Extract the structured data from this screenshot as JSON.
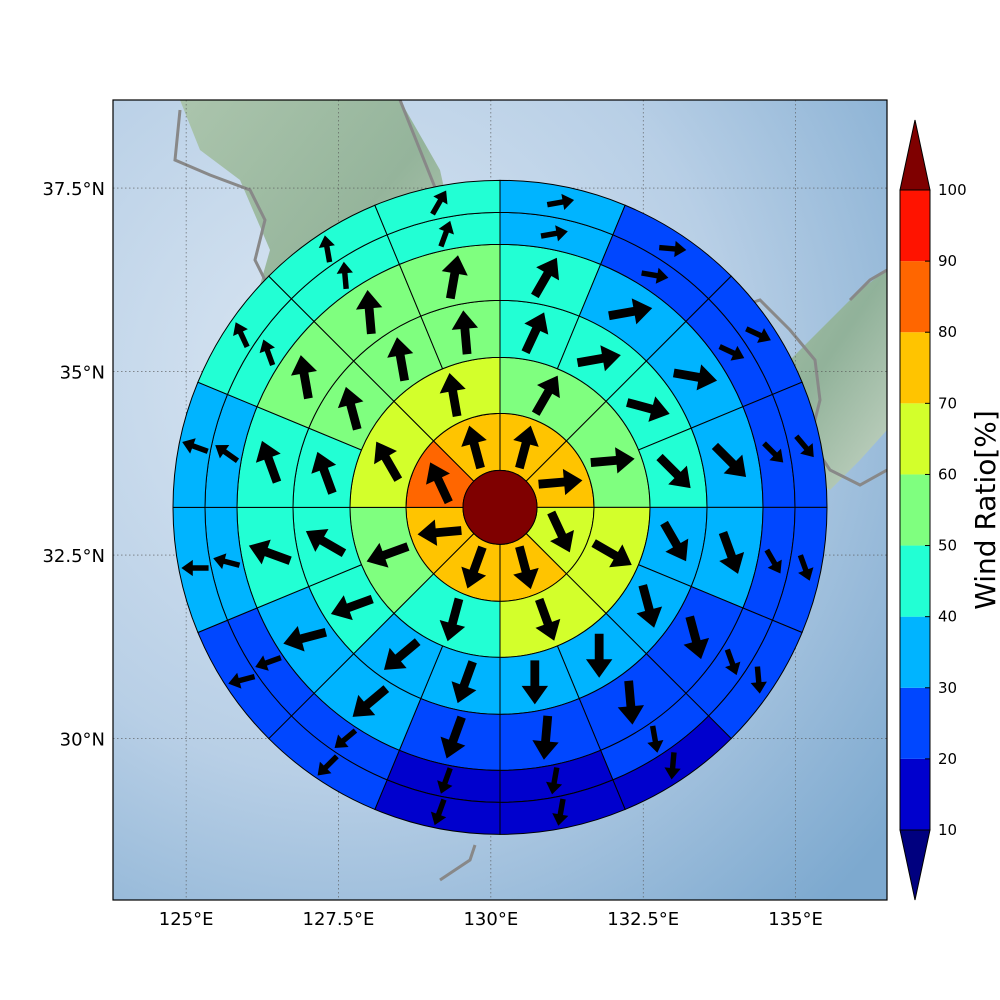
{
  "chart_data": {
    "type": "heatmap",
    "subtype": "polar-sector-wind-map",
    "map": {
      "lon_range": [
        123.8,
        136.5
      ],
      "lat_range": [
        27.8,
        38.7
      ],
      "center": {
        "lon": 130.15,
        "lat": 33.15
      },
      "x_ticks": [
        125,
        127.5,
        130,
        132.5,
        135
      ],
      "x_tick_labels": [
        "125°E",
        "127.5°E",
        "130°E",
        "132.5°E",
        "135°E"
      ],
      "y_ticks": [
        30,
        32.5,
        35,
        37.5
      ],
      "y_tick_labels": [
        "30°N",
        "32.5°N",
        "35°N",
        "37.5°N"
      ],
      "grid": true,
      "background": "shaded-relief",
      "coastline_color": "#888888"
    },
    "colorbar": {
      "label": "Wind Ratio[%]",
      "levels": [
        10,
        20,
        30,
        40,
        50,
        60,
        70,
        80,
        90,
        100
      ],
      "tick_labels": [
        "10",
        "20",
        "30",
        "40",
        "50",
        "60",
        "70",
        "80",
        "90",
        "100"
      ],
      "colors": [
        "#0000cd",
        "#0047ff",
        "#00b4ff",
        "#22ffd4",
        "#7fff7f",
        "#d3ff2b",
        "#ffc400",
        "#ff6600",
        "#ff1300",
        "#7f0000"
      ],
      "under_color": "#00007f",
      "over_color": "#7f0000",
      "extend": "both",
      "placement": "right"
    },
    "center_cell": {
      "value": 100
    },
    "rings": [
      {
        "name": "ring-1",
        "sectors": 8,
        "values": [
          75,
          75,
          65,
          75,
          75,
          75,
          80,
          75
        ],
        "wind_dir_deg": [
          15,
          85,
          155,
          165,
          200,
          265,
          335,
          345
        ]
      },
      {
        "name": "ring-2",
        "sectors": 8,
        "values": [
          55,
          55,
          65,
          65,
          45,
          55,
          65,
          65
        ],
        "wind_dir_deg": [
          30,
          85,
          120,
          160,
          195,
          250,
          330,
          350
        ]
      },
      {
        "name": "ring-3",
        "sectors": 16,
        "values": [
          45,
          45,
          45,
          45,
          35,
          35,
          35,
          35,
          35,
          35,
          45,
          45,
          45,
          55,
          55,
          55
        ],
        "wind_dir_deg": [
          25,
          80,
          105,
          135,
          150,
          165,
          180,
          180,
          200,
          230,
          250,
          300,
          340,
          345,
          350,
          355
        ]
      },
      {
        "name": "ring-4",
        "sectors": 16,
        "values": [
          45,
          35,
          35,
          35,
          35,
          25,
          25,
          25,
          25,
          35,
          35,
          45,
          45,
          55,
          55,
          55
        ],
        "wind_dir_deg": [
          30,
          80,
          100,
          135,
          160,
          165,
          175,
          185,
          200,
          230,
          255,
          290,
          340,
          350,
          355,
          10
        ]
      },
      {
        "name": "ring-5",
        "sectors": 16,
        "values": [
          35,
          25,
          25,
          25,
          25,
          25,
          25,
          15,
          15,
          25,
          25,
          35,
          35,
          45,
          45,
          45
        ],
        "wind_dir_deg": [
          80,
          100,
          115,
          135,
          150,
          160,
          170,
          190,
          200,
          230,
          250,
          285,
          305,
          340,
          355,
          20
        ]
      },
      {
        "name": "ring-6",
        "sectors": 16,
        "values": [
          35,
          25,
          25,
          25,
          25,
          25,
          15,
          15,
          15,
          25,
          25,
          35,
          35,
          45,
          45,
          45
        ],
        "wind_dir_deg": [
          80,
          95,
          115,
          140,
          160,
          175,
          185,
          190,
          200,
          225,
          255,
          270,
          290,
          335,
          350,
          30
        ]
      }
    ]
  }
}
